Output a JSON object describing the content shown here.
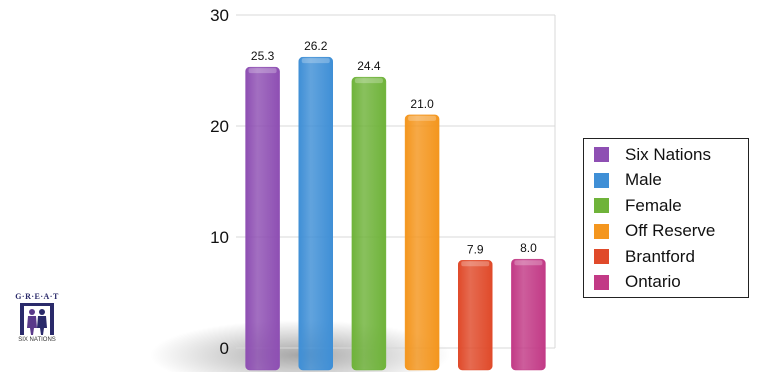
{
  "chart_data": {
    "type": "bar",
    "title": "",
    "xlabel": "",
    "ylabel": "",
    "categories": [
      "Six Nations",
      "Male",
      "Female",
      "Off Reserve",
      "Brantford",
      "Ontario"
    ],
    "values": [
      25.3,
      26.2,
      24.4,
      21.0,
      7.9,
      8.0
    ],
    "value_labels": [
      "25.3",
      "26.2",
      "24.4",
      "21.0",
      "7.9",
      "8.0"
    ],
    "colors": [
      "#8e4fb3",
      "#3f8fd6",
      "#6fb33a",
      "#f4961e",
      "#e04a2a",
      "#c23a86"
    ],
    "ylim": [
      0,
      30
    ],
    "yticks": [
      "0",
      "10",
      "20",
      "30"
    ],
    "grid": true,
    "legend_position": "right"
  },
  "logo": {
    "top_text": "G·R·E·A·T",
    "bottom_text": "SIX NATIONS"
  }
}
